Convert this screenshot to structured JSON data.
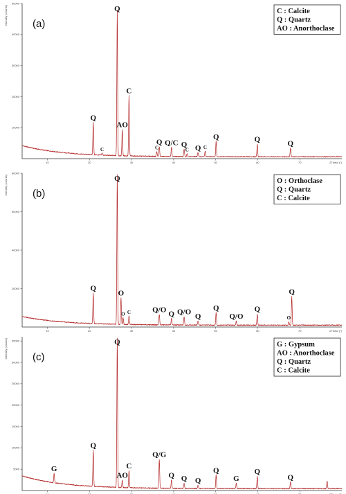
{
  "chart_data": [
    {
      "type": "line",
      "panel_label": "(a)",
      "ylabel": "Intensity (counts)",
      "xlabel": "2Theta (°)",
      "xlim": [
        4,
        80
      ],
      "ylim": [
        0,
        50000
      ],
      "xticks": [
        10,
        20,
        30,
        40,
        50,
        60,
        70
      ],
      "yticks": [
        10000,
        20000,
        30000,
        40000,
        50000
      ],
      "background": {
        "start": 3600,
        "decay": 10
      },
      "legend": [
        "C : Calcite",
        "Q : Quartz",
        "AO : Anorthoclase"
      ],
      "legend_position": "top-right",
      "peaks": [
        {
          "x": 20.9,
          "y": 10500,
          "label": "Q"
        },
        {
          "x": 23.0,
          "y": 700,
          "label": "C"
        },
        {
          "x": 26.6,
          "y": 47000,
          "label": "Q"
        },
        {
          "x": 27.8,
          "y": 8500,
          "label": "AO"
        },
        {
          "x": 29.4,
          "y": 19500,
          "label": "C"
        },
        {
          "x": 36.0,
          "y": 1600,
          "label": "C"
        },
        {
          "x": 36.6,
          "y": 3200,
          "label": "Q"
        },
        {
          "x": 39.5,
          "y": 3000,
          "label": "Q/C"
        },
        {
          "x": 42.5,
          "y": 2500,
          "label": "Q"
        },
        {
          "x": 43.2,
          "y": 1000,
          "label": "C"
        },
        {
          "x": 45.8,
          "y": 1400,
          "label": "Q"
        },
        {
          "x": 47.5,
          "y": 1800,
          "label": "C"
        },
        {
          "x": 50.1,
          "y": 5000,
          "label": "Q"
        },
        {
          "x": 59.9,
          "y": 4200,
          "label": "Q"
        },
        {
          "x": 67.8,
          "y": 2800,
          "label": "Q"
        }
      ]
    },
    {
      "type": "line",
      "panel_label": "(b)",
      "ylabel": "Intensity (counts)",
      "xlabel": "2Theta (°)",
      "xlim": [
        4,
        80
      ],
      "ylim": [
        0,
        80000
      ],
      "xticks": [
        10,
        20,
        30,
        40,
        50,
        60,
        70
      ],
      "yticks": [
        20000,
        40000,
        60000,
        80000
      ],
      "background": {
        "start": 4500,
        "decay": 10
      },
      "legend": [
        "O : Orthoclase",
        "Q : Quartz",
        "C : Calcite"
      ],
      "legend_position": "top-right",
      "peaks": [
        {
          "x": 20.9,
          "y": 16000,
          "label": "Q"
        },
        {
          "x": 26.6,
          "y": 78000,
          "label": "Q"
        },
        {
          "x": 27.5,
          "y": 14000,
          "label": "O"
        },
        {
          "x": 28.0,
          "y": 3500,
          "label": "O"
        },
        {
          "x": 29.4,
          "y": 4500,
          "label": "C"
        },
        {
          "x": 36.6,
          "y": 5500,
          "label": "Q/O"
        },
        {
          "x": 39.5,
          "y": 3500,
          "label": "Q"
        },
        {
          "x": 42.5,
          "y": 4500,
          "label": "Q/O"
        },
        {
          "x": 45.8,
          "y": 2200,
          "label": "Q"
        },
        {
          "x": 50.1,
          "y": 6500,
          "label": "Q"
        },
        {
          "x": 54.9,
          "y": 2200,
          "label": "Q/O"
        },
        {
          "x": 59.9,
          "y": 6000,
          "label": "Q"
        },
        {
          "x": 67.4,
          "y": 2000,
          "label": "O"
        },
        {
          "x": 68.1,
          "y": 15000,
          "label": "Q"
        }
      ]
    },
    {
      "type": "line",
      "panel_label": "(c)",
      "ylabel": "Intensity (counts)",
      "xlabel": "2Theta (°)",
      "xlim": [
        4,
        80
      ],
      "ylim": [
        0,
        36000
      ],
      "xticks": [
        10,
        20,
        30,
        40,
        50,
        60,
        70
      ],
      "yticks": [
        5000,
        10000,
        15000,
        20000,
        25000,
        30000,
        35000
      ],
      "background": {
        "start": 3000,
        "decay": 10
      },
      "legend": [
        "G : Gypsum",
        "AO : Anorthoclase",
        "Q : Quartz",
        "C : Calcite"
      ],
      "legend_position": "top-right",
      "peaks": [
        {
          "x": 11.6,
          "y": 2200,
          "label": "G"
        },
        {
          "x": 20.9,
          "y": 8500,
          "label": "Q"
        },
        {
          "x": 26.6,
          "y": 35000,
          "label": "Q"
        },
        {
          "x": 27.8,
          "y": 1800,
          "label": "AO"
        },
        {
          "x": 29.4,
          "y": 4000,
          "label": "C"
        },
        {
          "x": 36.6,
          "y": 6800,
          "label": "Q/G"
        },
        {
          "x": 39.5,
          "y": 2000,
          "label": "Q"
        },
        {
          "x": 42.5,
          "y": 1300,
          "label": "Q"
        },
        {
          "x": 45.8,
          "y": 800,
          "label": "Q"
        },
        {
          "x": 50.1,
          "y": 3200,
          "label": "Q"
        },
        {
          "x": 54.9,
          "y": 1300,
          "label": "G"
        },
        {
          "x": 59.9,
          "y": 3000,
          "label": "Q"
        },
        {
          "x": 67.8,
          "y": 1600,
          "label": "Q"
        },
        {
          "x": 76.5,
          "y": 1800,
          "label": ""
        }
      ]
    }
  ]
}
